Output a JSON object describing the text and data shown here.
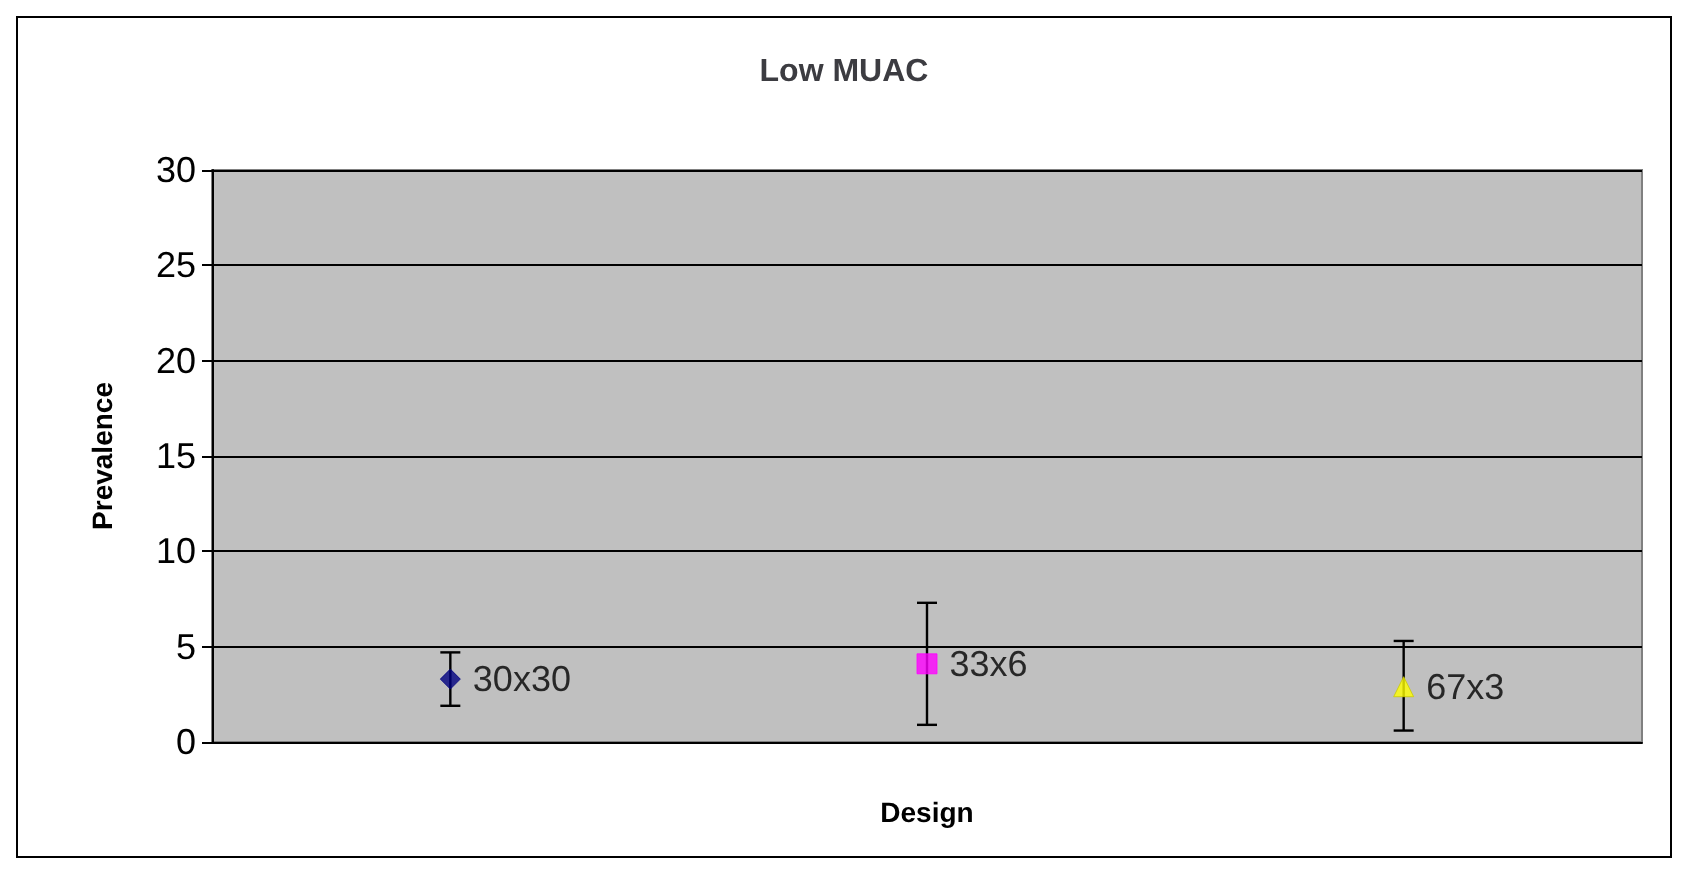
{
  "chart_data": {
    "type": "scatter",
    "title": "Low MUAC",
    "xlabel": "Design",
    "ylabel": "Prevalence",
    "categories": [
      null,
      null,
      null
    ],
    "series": [
      {
        "name": "30x30",
        "color": "#000080",
        "marker": "diamond",
        "values": [
          3.3,
          null,
          null
        ],
        "errors": [
          [
            1.9,
            4.7
          ],
          null,
          null
        ]
      },
      {
        "name": "33x6",
        "color": "#ff00ff",
        "marker": "square",
        "values": [
          null,
          4.1,
          null
        ],
        "errors": [
          null,
          [
            0.9,
            7.3
          ],
          null
        ]
      },
      {
        "name": "67x3",
        "color": "#ffff00",
        "marker": "triangle",
        "values": [
          null,
          null,
          2.9
        ],
        "errors": [
          null,
          null,
          [
            0.6,
            5.3
          ]
        ]
      }
    ],
    "ylim": [
      0,
      30
    ],
    "yticks": [
      0,
      5,
      10,
      15,
      20,
      25,
      30
    ],
    "grid": "y",
    "legend": false
  }
}
